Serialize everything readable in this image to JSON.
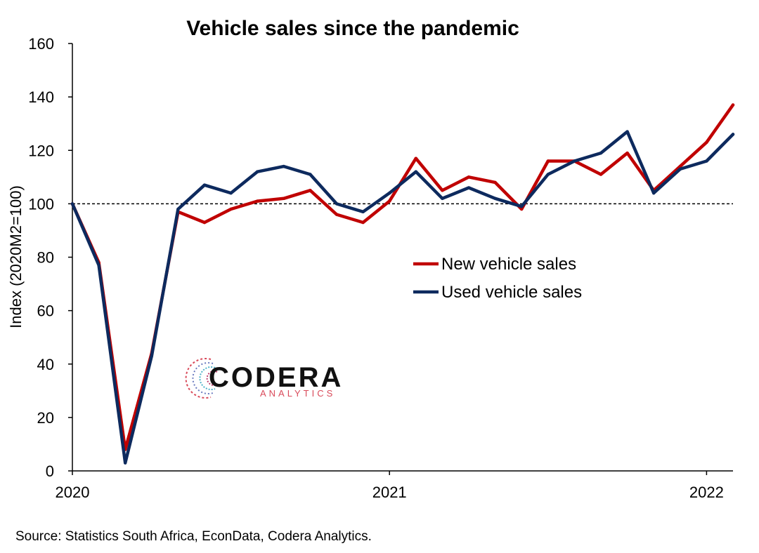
{
  "chart_data": {
    "type": "line",
    "title": "Vehicle sales since the pandemic",
    "ylabel": "Index (2020M2=100)",
    "xlabel": "",
    "ylim": [
      0,
      160
    ],
    "yticks": [
      0,
      20,
      40,
      60,
      80,
      100,
      120,
      140,
      160
    ],
    "xticks": [
      {
        "label": "2020",
        "index": 0
      },
      {
        "label": "2021",
        "index": 12
      },
      {
        "label": "2022",
        "index": 24
      }
    ],
    "reference_line": {
      "value": 100,
      "style": "dashed"
    },
    "legend_placement": "center-right",
    "grid": false,
    "x": [
      "2020M2",
      "2020M3",
      "2020M4",
      "2020M5",
      "2020M6",
      "2020M7",
      "2020M8",
      "2020M9",
      "2020M10",
      "2020M11",
      "2020M12",
      "2021M1",
      "2021M2",
      "2021M3",
      "2021M4",
      "2021M5",
      "2021M6",
      "2021M7",
      "2021M8",
      "2021M9",
      "2021M10",
      "2021M11",
      "2021M12",
      "2022M1",
      "2022M2",
      "2022M3"
    ],
    "series": [
      {
        "name": "New vehicle sales",
        "color": "#C00000",
        "values": [
          100,
          78,
          8,
          44,
          97,
          93,
          98,
          101,
          102,
          105,
          96,
          93,
          101,
          117,
          105,
          110,
          108,
          98,
          116,
          116,
          111,
          119,
          105,
          114,
          123,
          137
        ]
      },
      {
        "name": "Used vehicle sales",
        "color": "#0D2A5E",
        "values": [
          100,
          77,
          3,
          43,
          98,
          107,
          104,
          112,
          114,
          111,
          100,
          97,
          104,
          112,
          102,
          106,
          102,
          99,
          111,
          116,
          119,
          127,
          104,
          113,
          116,
          126
        ]
      }
    ]
  },
  "logo": {
    "name": "CODERA",
    "subtitle": "ANALYTICS"
  },
  "source": "Source: Statistics South Africa, EconData, Codera Analytics."
}
